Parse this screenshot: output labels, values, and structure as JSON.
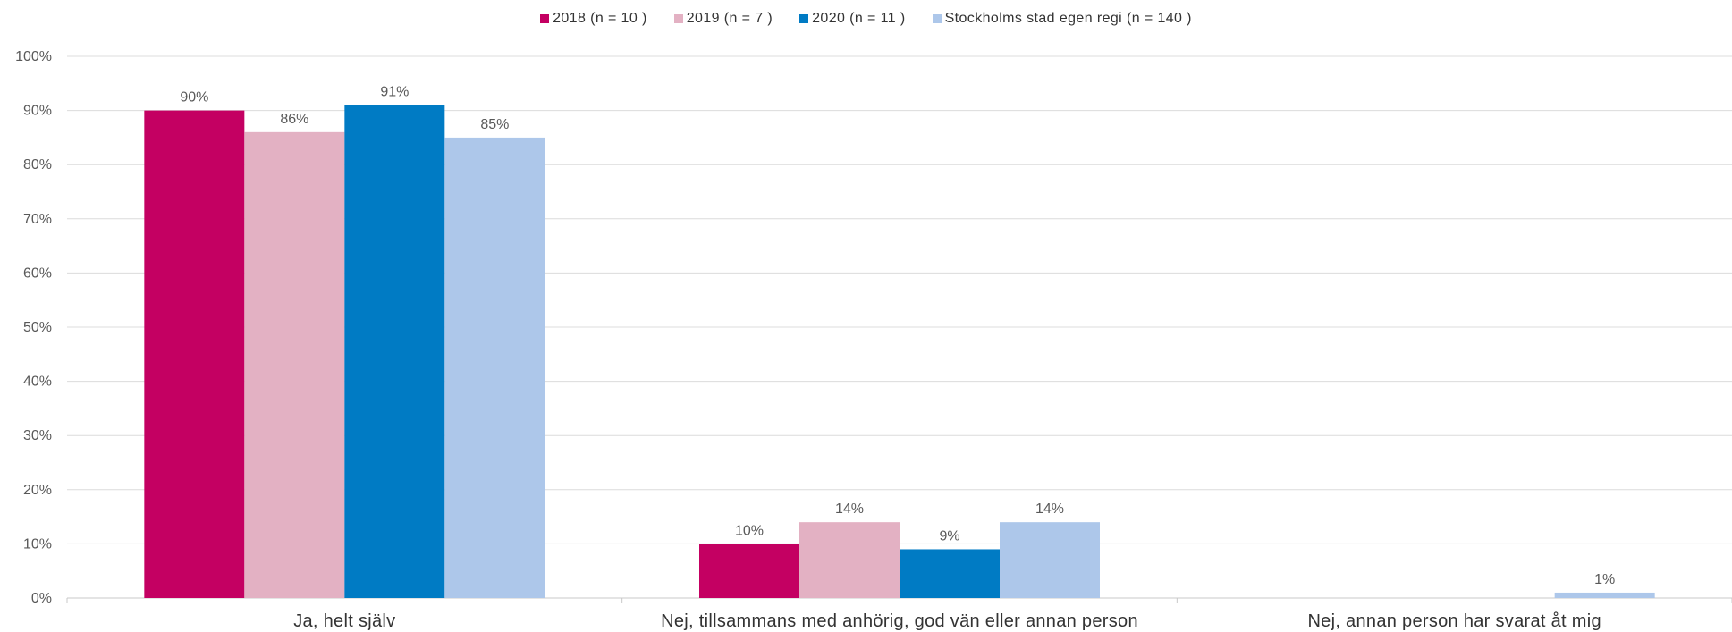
{
  "chart_data": {
    "type": "bar",
    "categories": [
      "Ja, helt själv",
      "Nej, tillsammans med anhörig, god vän eller annan person",
      "Nej, annan person har svarat åt mig"
    ],
    "series": [
      {
        "name": "2018 (n = 10 )",
        "color": "#C40062",
        "values": [
          90,
          10,
          null
        ],
        "labels": [
          "90%",
          "10%",
          ""
        ]
      },
      {
        "name": "2019 (n = 7 )",
        "color": "#E3B1C3",
        "values": [
          86,
          14,
          null
        ],
        "labels": [
          "86%",
          "14%",
          ""
        ]
      },
      {
        "name": "2020 (n = 11 )",
        "color": "#007BC4",
        "values": [
          91,
          9,
          null
        ],
        "labels": [
          "91%",
          "9%",
          ""
        ]
      },
      {
        "name": "Stockholms stad egen regi (n = 140 )",
        "color": "#ADC7EA",
        "values": [
          85,
          14,
          1
        ],
        "labels": [
          "85%",
          "14%",
          "1%"
        ]
      }
    ],
    "yticks": [
      "0%",
      "10%",
      "20%",
      "30%",
      "40%",
      "50%",
      "60%",
      "70%",
      "80%",
      "90%",
      "100%"
    ],
    "ylim": [
      0,
      100
    ],
    "grid": true,
    "legend_position": "top"
  }
}
